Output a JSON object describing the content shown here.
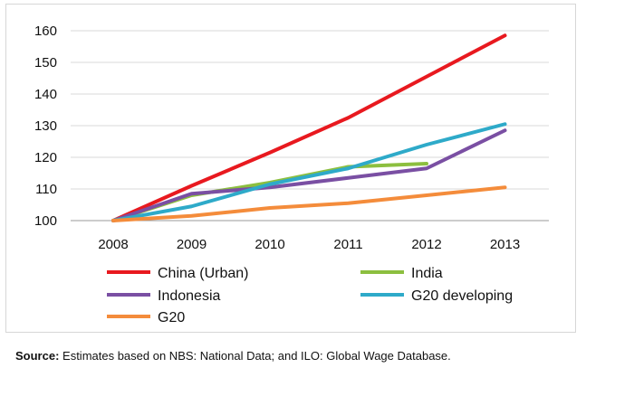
{
  "chart_data": {
    "type": "line",
    "x": [
      "2008",
      "2009",
      "2010",
      "2011",
      "2012",
      "2013"
    ],
    "ylim": [
      100,
      160
    ],
    "yticks": [
      100,
      110,
      120,
      130,
      140,
      150,
      160
    ],
    "grid": true,
    "legend_position": "bottom",
    "series": [
      {
        "name": "China (Urban)",
        "color": "#e8191f",
        "values": [
          100,
          111,
          121.5,
          132.5,
          145.5,
          158.5
        ]
      },
      {
        "name": "India",
        "color": "#8cbf3f",
        "values": [
          100,
          108,
          112,
          117,
          118,
          null
        ]
      },
      {
        "name": "Indonesia",
        "color": "#7a4fa3",
        "values": [
          100,
          108.5,
          110.5,
          113.5,
          116.5,
          128.5
        ]
      },
      {
        "name": "G20 developing",
        "color": "#2eaac9",
        "values": [
          100,
          104.5,
          111.5,
          116.5,
          124,
          130.5
        ]
      },
      {
        "name": "G20",
        "color": "#f48c3b",
        "values": [
          100,
          101.5,
          104,
          105.5,
          108,
          110.5
        ]
      }
    ]
  },
  "source": {
    "label": "Source:",
    "text": " Estimates based on NBS: National Data; and ILO: Global Wage Database."
  }
}
